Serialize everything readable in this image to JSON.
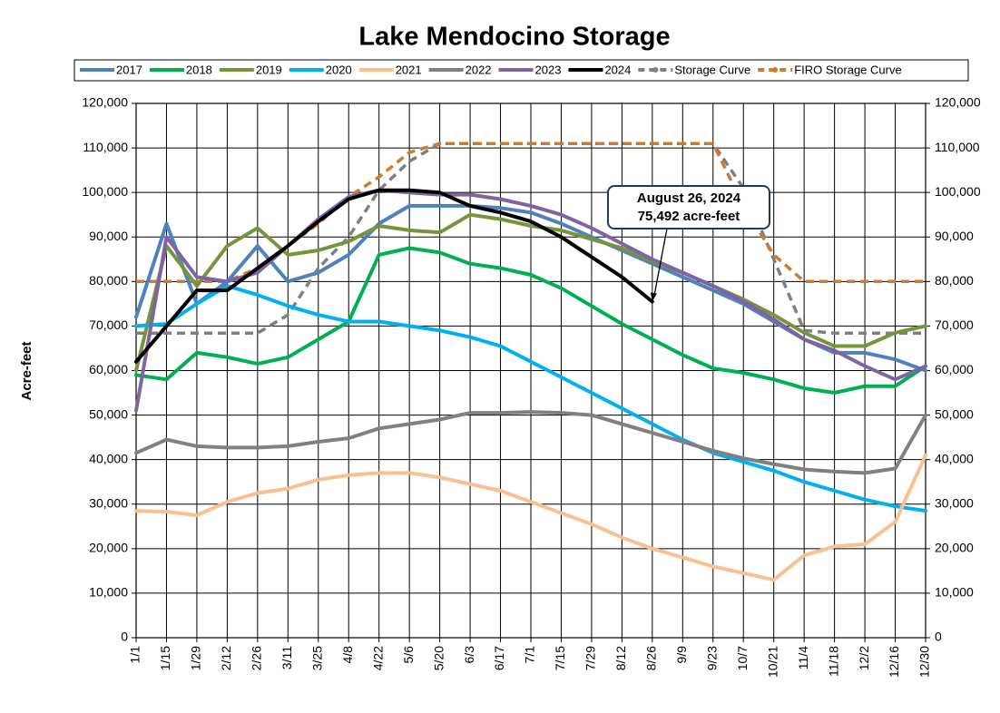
{
  "chart_data": {
    "type": "line",
    "title": "Lake Mendocino Storage",
    "y_label": "Acre-feet",
    "categories": [
      "1/1",
      "1/15",
      "1/29",
      "2/12",
      "2/26",
      "3/11",
      "3/25",
      "4/8",
      "4/22",
      "5/6",
      "5/20",
      "6/3",
      "6/17",
      "7/1",
      "7/15",
      "7/29",
      "8/12",
      "8/26",
      "9/9",
      "9/23",
      "10/7",
      "10/21",
      "11/4",
      "11/18",
      "12/2",
      "12/16",
      "12/30"
    ],
    "ylim": [
      0,
      120000
    ],
    "yticks": [
      {
        "value": 0,
        "label": "0"
      },
      {
        "value": 10000,
        "label": "10,000"
      },
      {
        "value": 20000,
        "label": "20,000"
      },
      {
        "value": 30000,
        "label": "30,000"
      },
      {
        "value": 40000,
        "label": "40,000"
      },
      {
        "value": 50000,
        "label": "50,000"
      },
      {
        "value": 60000,
        "label": "60,000"
      },
      {
        "value": 70000,
        "label": "70,000"
      },
      {
        "value": 80000,
        "label": "80,000"
      },
      {
        "value": 90000,
        "label": "90,000"
      },
      {
        "value": 100000,
        "label": "100,000"
      },
      {
        "value": 110000,
        "label": "110,000"
      },
      {
        "value": 120000,
        "label": "120,000"
      }
    ],
    "grid": true,
    "legend_position": "top",
    "series": [
      {
        "name": "2017",
        "color": "#4f81bd",
        "dashed": false,
        "values": [
          72000,
          93000,
          75000,
          80000,
          88000,
          80000,
          82000,
          86000,
          93000,
          97000,
          97000,
          97000,
          96500,
          95500,
          93000,
          90000,
          87000,
          84000,
          81000,
          78000,
          75000,
          71000,
          67000,
          64000,
          64000,
          62500,
          60000
        ]
      },
      {
        "name": "2018",
        "color": "#00b050",
        "dashed": false,
        "values": [
          59000,
          58000,
          64000,
          63000,
          61500,
          63000,
          67000,
          71000,
          86000,
          87500,
          86500,
          84000,
          83000,
          81500,
          78500,
          74500,
          70500,
          67000,
          63500,
          60500,
          59500,
          58000,
          56000,
          55000,
          56500,
          56500,
          61000
        ]
      },
      {
        "name": "2019",
        "color": "#77933c",
        "dashed": false,
        "values": [
          60000,
          88000,
          79000,
          88000,
          92000,
          86000,
          87000,
          89000,
          92500,
          91500,
          91000,
          95000,
          94000,
          92500,
          91500,
          89500,
          87500,
          84500,
          82000,
          79000,
          76000,
          72500,
          68500,
          65500,
          65500,
          68500,
          70000
        ]
      },
      {
        "name": "2020",
        "color": "#00b0f0",
        "dashed": false,
        "values": [
          70000,
          70500,
          75000,
          79000,
          77000,
          74500,
          72500,
          71000,
          71000,
          70000,
          69000,
          67500,
          65500,
          62000,
          58500,
          55000,
          51500,
          48000,
          44500,
          41500,
          39500,
          37500,
          35000,
          33000,
          31000,
          29500,
          28500
        ]
      },
      {
        "name": "2021",
        "color": "#fac090",
        "dashed": false,
        "values": [
          28500,
          28300,
          27500,
          30500,
          32500,
          33500,
          35500,
          36500,
          37000,
          37000,
          36000,
          34500,
          33000,
          30500,
          28000,
          25500,
          22500,
          20000,
          18000,
          16000,
          14500,
          13000,
          18500,
          20500,
          21000,
          26000,
          41000
        ]
      },
      {
        "name": "2022",
        "color": "#808080",
        "dashed": false,
        "values": [
          41500,
          44500,
          43000,
          42700,
          42700,
          43000,
          44000,
          44800,
          47000,
          48000,
          49000,
          50500,
          50500,
          50700,
          50500,
          50000,
          48000,
          46000,
          44000,
          42000,
          40300,
          39000,
          37800,
          37300,
          37000,
          38000,
          50000
        ]
      },
      {
        "name": "2023",
        "color": "#8064a2",
        "dashed": false,
        "values": [
          51000,
          90000,
          81000,
          80000,
          82000,
          88000,
          94000,
          99000,
          100500,
          100000,
          99500,
          99500,
          98500,
          97000,
          95000,
          92000,
          88500,
          85000,
          82000,
          79000,
          75500,
          71500,
          67000,
          64500,
          61000,
          58000,
          61000
        ]
      },
      {
        "name": "2024",
        "color": "#000000",
        "dashed": false,
        "values": [
          62000,
          70000,
          78000,
          78000,
          83000,
          88000,
          93500,
          98500,
          100500,
          100500,
          100000,
          97000,
          95500,
          93500,
          90000,
          85500,
          81000,
          75492,
          null,
          null,
          null,
          null,
          null,
          null,
          null,
          null,
          null
        ]
      },
      {
        "name": "Storage Curve",
        "color": "#7f7f7f",
        "dashed": true,
        "values": [
          68400,
          68400,
          68400,
          68400,
          68400,
          72500,
          83000,
          90000,
          100500,
          107000,
          111000,
          111000,
          111000,
          111000,
          111000,
          111000,
          111000,
          111000,
          111000,
          111000,
          101000,
          85000,
          69000,
          68400,
          68400,
          68400,
          68400
        ]
      },
      {
        "name": "FIRO Storage Curve",
        "color": "#d07a30",
        "dashed": true,
        "values": [
          80000,
          80000,
          80000,
          80000,
          83000,
          88000,
          93000,
          99000,
          103500,
          109000,
          111000,
          111000,
          111000,
          111000,
          111000,
          111000,
          111000,
          111000,
          111000,
          111000,
          97000,
          86000,
          80000,
          80000,
          80000,
          80000,
          80000
        ]
      }
    ],
    "annotation": [
      "August 26, 2024",
      "75,492 acre-feet"
    ]
  }
}
